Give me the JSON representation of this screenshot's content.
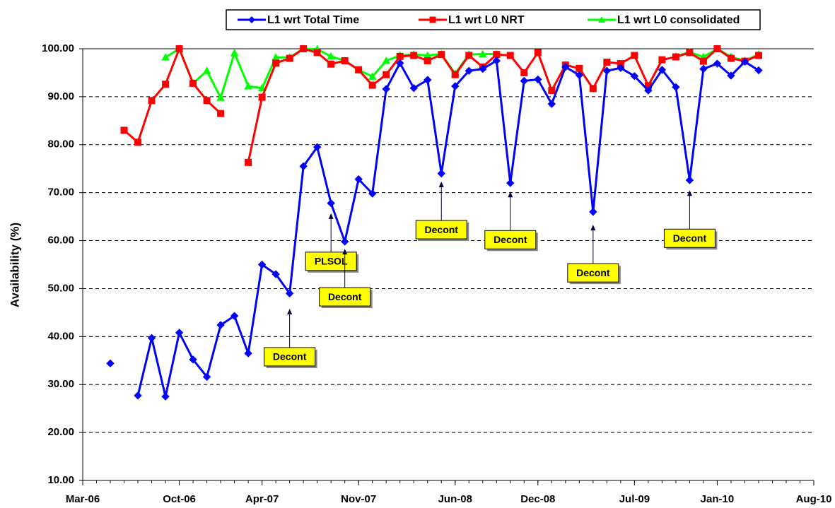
{
  "chart_data": {
    "type": "line",
    "y_label": "Availability (%)",
    "x": [
      "2006-05",
      "2006-06",
      "2006-07",
      "2006-08",
      "2006-09",
      "2006-10",
      "2006-11",
      "2006-12",
      "2007-01",
      "2007-02",
      "2007-03",
      "2007-04",
      "2007-05",
      "2007-06",
      "2007-07",
      "2007-08",
      "2007-09",
      "2007-10",
      "2007-11",
      "2007-12",
      "2008-01",
      "2008-02",
      "2008-03",
      "2008-04",
      "2008-05",
      "2008-06",
      "2008-07",
      "2008-08",
      "2008-09",
      "2008-10",
      "2008-11",
      "2008-12",
      "2009-01",
      "2009-02",
      "2009-03",
      "2009-04",
      "2009-05",
      "2009-06",
      "2009-07",
      "2009-08",
      "2009-09",
      "2009-10",
      "2009-11",
      "2009-12",
      "2010-01",
      "2010-02",
      "2010-03",
      "2010-04"
    ],
    "series": [
      {
        "name": "L1 wrt Total Time",
        "color": "#0000ff",
        "marker": "diamond",
        "values": [
          34.4,
          null,
          27.7,
          39.7,
          27.5,
          40.8,
          35.2,
          31.6,
          42.4,
          44.3,
          36.5,
          55.0,
          53.0,
          49.0,
          75.5,
          79.5,
          67.8,
          59.8,
          72.8,
          69.8,
          91.6,
          97.0,
          91.8,
          93.5,
          74.0,
          92.2,
          95.4,
          95.8,
          97.5,
          72.0,
          93.3,
          93.6,
          88.5,
          96.2,
          94.5,
          66.0,
          95.4,
          96.0,
          94.3,
          91.3,
          95.6,
          92.0,
          72.6,
          95.8,
          96.9,
          94.4,
          97.3,
          95.5
        ]
      },
      {
        "name": "L1 wrt L0 NRT",
        "color": "#ff0000",
        "marker": "square",
        "values": [
          null,
          83.0,
          80.5,
          89.2,
          92.6,
          100,
          92.8,
          89.2,
          86.5,
          null,
          76.3,
          89.9,
          97.0,
          98.0,
          100,
          99.2,
          96.8,
          97.5,
          95.6,
          92.4,
          94.6,
          98.4,
          98.6,
          97.5,
          98.8,
          94.6,
          98.6,
          96.2,
          98.8,
          98.6,
          95.0,
          99.2,
          91.3,
          96.6,
          95.9,
          91.7,
          97.2,
          96.9,
          98.6,
          92.3,
          97.7,
          98.3,
          99.2,
          97.4,
          100,
          98.0,
          97.4,
          98.6
        ]
      },
      {
        "name": "L1 wrt L0 consolidated",
        "color": "#00ff00",
        "marker": "triangle",
        "values": [
          null,
          null,
          null,
          null,
          98.2,
          100,
          92.8,
          95.4,
          89.8,
          99.1,
          92.2,
          91.8,
          98.2,
          98.2,
          100,
          99.9,
          98.4,
          97.5,
          95.6,
          94.2,
          97.5,
          98.6,
          98.8,
          98.6,
          98.9,
          94.8,
          98.8,
          98.9,
          98.9,
          null,
          null,
          null,
          null,
          null,
          null,
          null,
          null,
          null,
          null,
          null,
          null,
          98.4,
          99.3,
          98.3,
          100,
          98.3,
          97.5,
          98.8
        ]
      }
    ],
    "xlim": [
      "2006-03",
      "2010-08"
    ],
    "xticks": [
      {
        "value": "2006-03",
        "label": "Mar-06"
      },
      {
        "value": "2006-10",
        "label": "Oct-06"
      },
      {
        "value": "2007-04",
        "label": "Apr-07"
      },
      {
        "value": "2007-11",
        "label": "Nov-07"
      },
      {
        "value": "2008-06",
        "label": "Jun-08"
      },
      {
        "value": "2008-12",
        "label": "Dec-08"
      },
      {
        "value": "2009-07",
        "label": "Jul-09"
      },
      {
        "value": "2010-01",
        "label": "Jan-10"
      },
      {
        "value": "2010-08",
        "label": "Aug-10"
      }
    ],
    "ylim": [
      10,
      100
    ],
    "yticks": [
      {
        "value": 10,
        "label": "10.00"
      },
      {
        "value": 20,
        "label": "20.00"
      },
      {
        "value": 30,
        "label": "30.00"
      },
      {
        "value": 40,
        "label": "40.00"
      },
      {
        "value": 50,
        "label": "50.00"
      },
      {
        "value": 60,
        "label": "60.00"
      },
      {
        "value": 70,
        "label": "70.00"
      },
      {
        "value": 80,
        "label": "80.00"
      },
      {
        "value": 90,
        "label": "90.00"
      },
      {
        "value": 100,
        "label": "100.00"
      }
    ],
    "grid": true,
    "legend": "top",
    "annotations": [
      {
        "text": "Decont",
        "x": "2007-06",
        "y": 45.8
      },
      {
        "text": "PLSOL",
        "x": "2007-09",
        "y": 65.7
      },
      {
        "text": "Decont",
        "x": "2007-10",
        "y": 58.3
      },
      {
        "text": "Decont",
        "x": "2008-05",
        "y": 72.3
      },
      {
        "text": "Decont",
        "x": "2008-10",
        "y": 70.2
      },
      {
        "text": "Decont",
        "x": "2009-04",
        "y": 63.3
      },
      {
        "text": "Decont",
        "x": "2009-11",
        "y": 70.5
      }
    ]
  }
}
